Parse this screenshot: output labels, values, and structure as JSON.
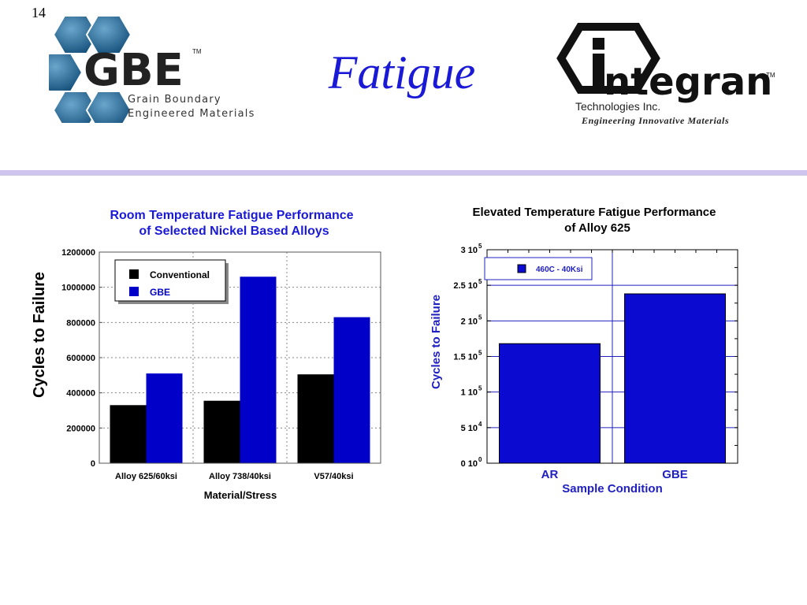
{
  "slide": {
    "number": "14",
    "title": "Fatigue"
  },
  "logos": {
    "gbe": {
      "letters": "GBE",
      "tm": "TM",
      "line1": "Grain Boundary",
      "line2": "Engineered Materials"
    },
    "integran": {
      "name": "ntegran",
      "tm": "TM",
      "line1": "Technologies Inc.",
      "line2": "Engineering  Innovative  Materials"
    }
  },
  "colors": {
    "title": "#1a1ad6",
    "conventional": "#000000",
    "gbe": "#0000c8",
    "chart2_bar": "#0a0ad0",
    "chart2_text": "#2020c0",
    "divider": "#cfc4ee"
  },
  "chart_data": [
    {
      "type": "bar",
      "title": "Room Temperature Fatigue Performance",
      "subtitle": "of Selected Nickel Based Alloys",
      "xlabel": "Material/Stress",
      "ylabel": "Cycles to Failure",
      "categories": [
        "Alloy 625/60ksi",
        "Alloy 738/40ksi",
        "V57/40ksi"
      ],
      "series": [
        {
          "name": "Conventional",
          "values": [
            330000,
            355000,
            505000
          ]
        },
        {
          "name": "GBE",
          "values": [
            510000,
            1060000,
            830000
          ]
        }
      ],
      "yticks": [
        "0",
        "200000",
        "400000",
        "600000",
        "800000",
        "1000000",
        "1200000"
      ],
      "ylim": [
        0,
        1200000
      ],
      "legend": "top-left",
      "grid": true
    },
    {
      "type": "bar",
      "title": "Elevated Temperature Fatigue Performance",
      "subtitle": "of Alloy 625",
      "xlabel": "Sample Condition",
      "ylabel": "Cycles to Failure",
      "categories": [
        "AR",
        "GBE"
      ],
      "series": [
        {
          "name": "460C - 40Ksi",
          "values": [
            168000,
            238000
          ]
        }
      ],
      "yticks": [
        {
          "base": "0 10",
          "exp": "0",
          "value": 0
        },
        {
          "base": "5 10",
          "exp": "4",
          "value": 50000
        },
        {
          "base": "1 10",
          "exp": "5",
          "value": 100000
        },
        {
          "base": "1.5 10",
          "exp": "5",
          "value": 150000
        },
        {
          "base": "2 10",
          "exp": "5",
          "value": 200000
        },
        {
          "base": "2.5 10",
          "exp": "5",
          "value": 250000
        },
        {
          "base": "3 10",
          "exp": "5",
          "value": 300000
        }
      ],
      "ylim": [
        0,
        300000
      ],
      "legend": "top-left",
      "grid": true
    }
  ]
}
